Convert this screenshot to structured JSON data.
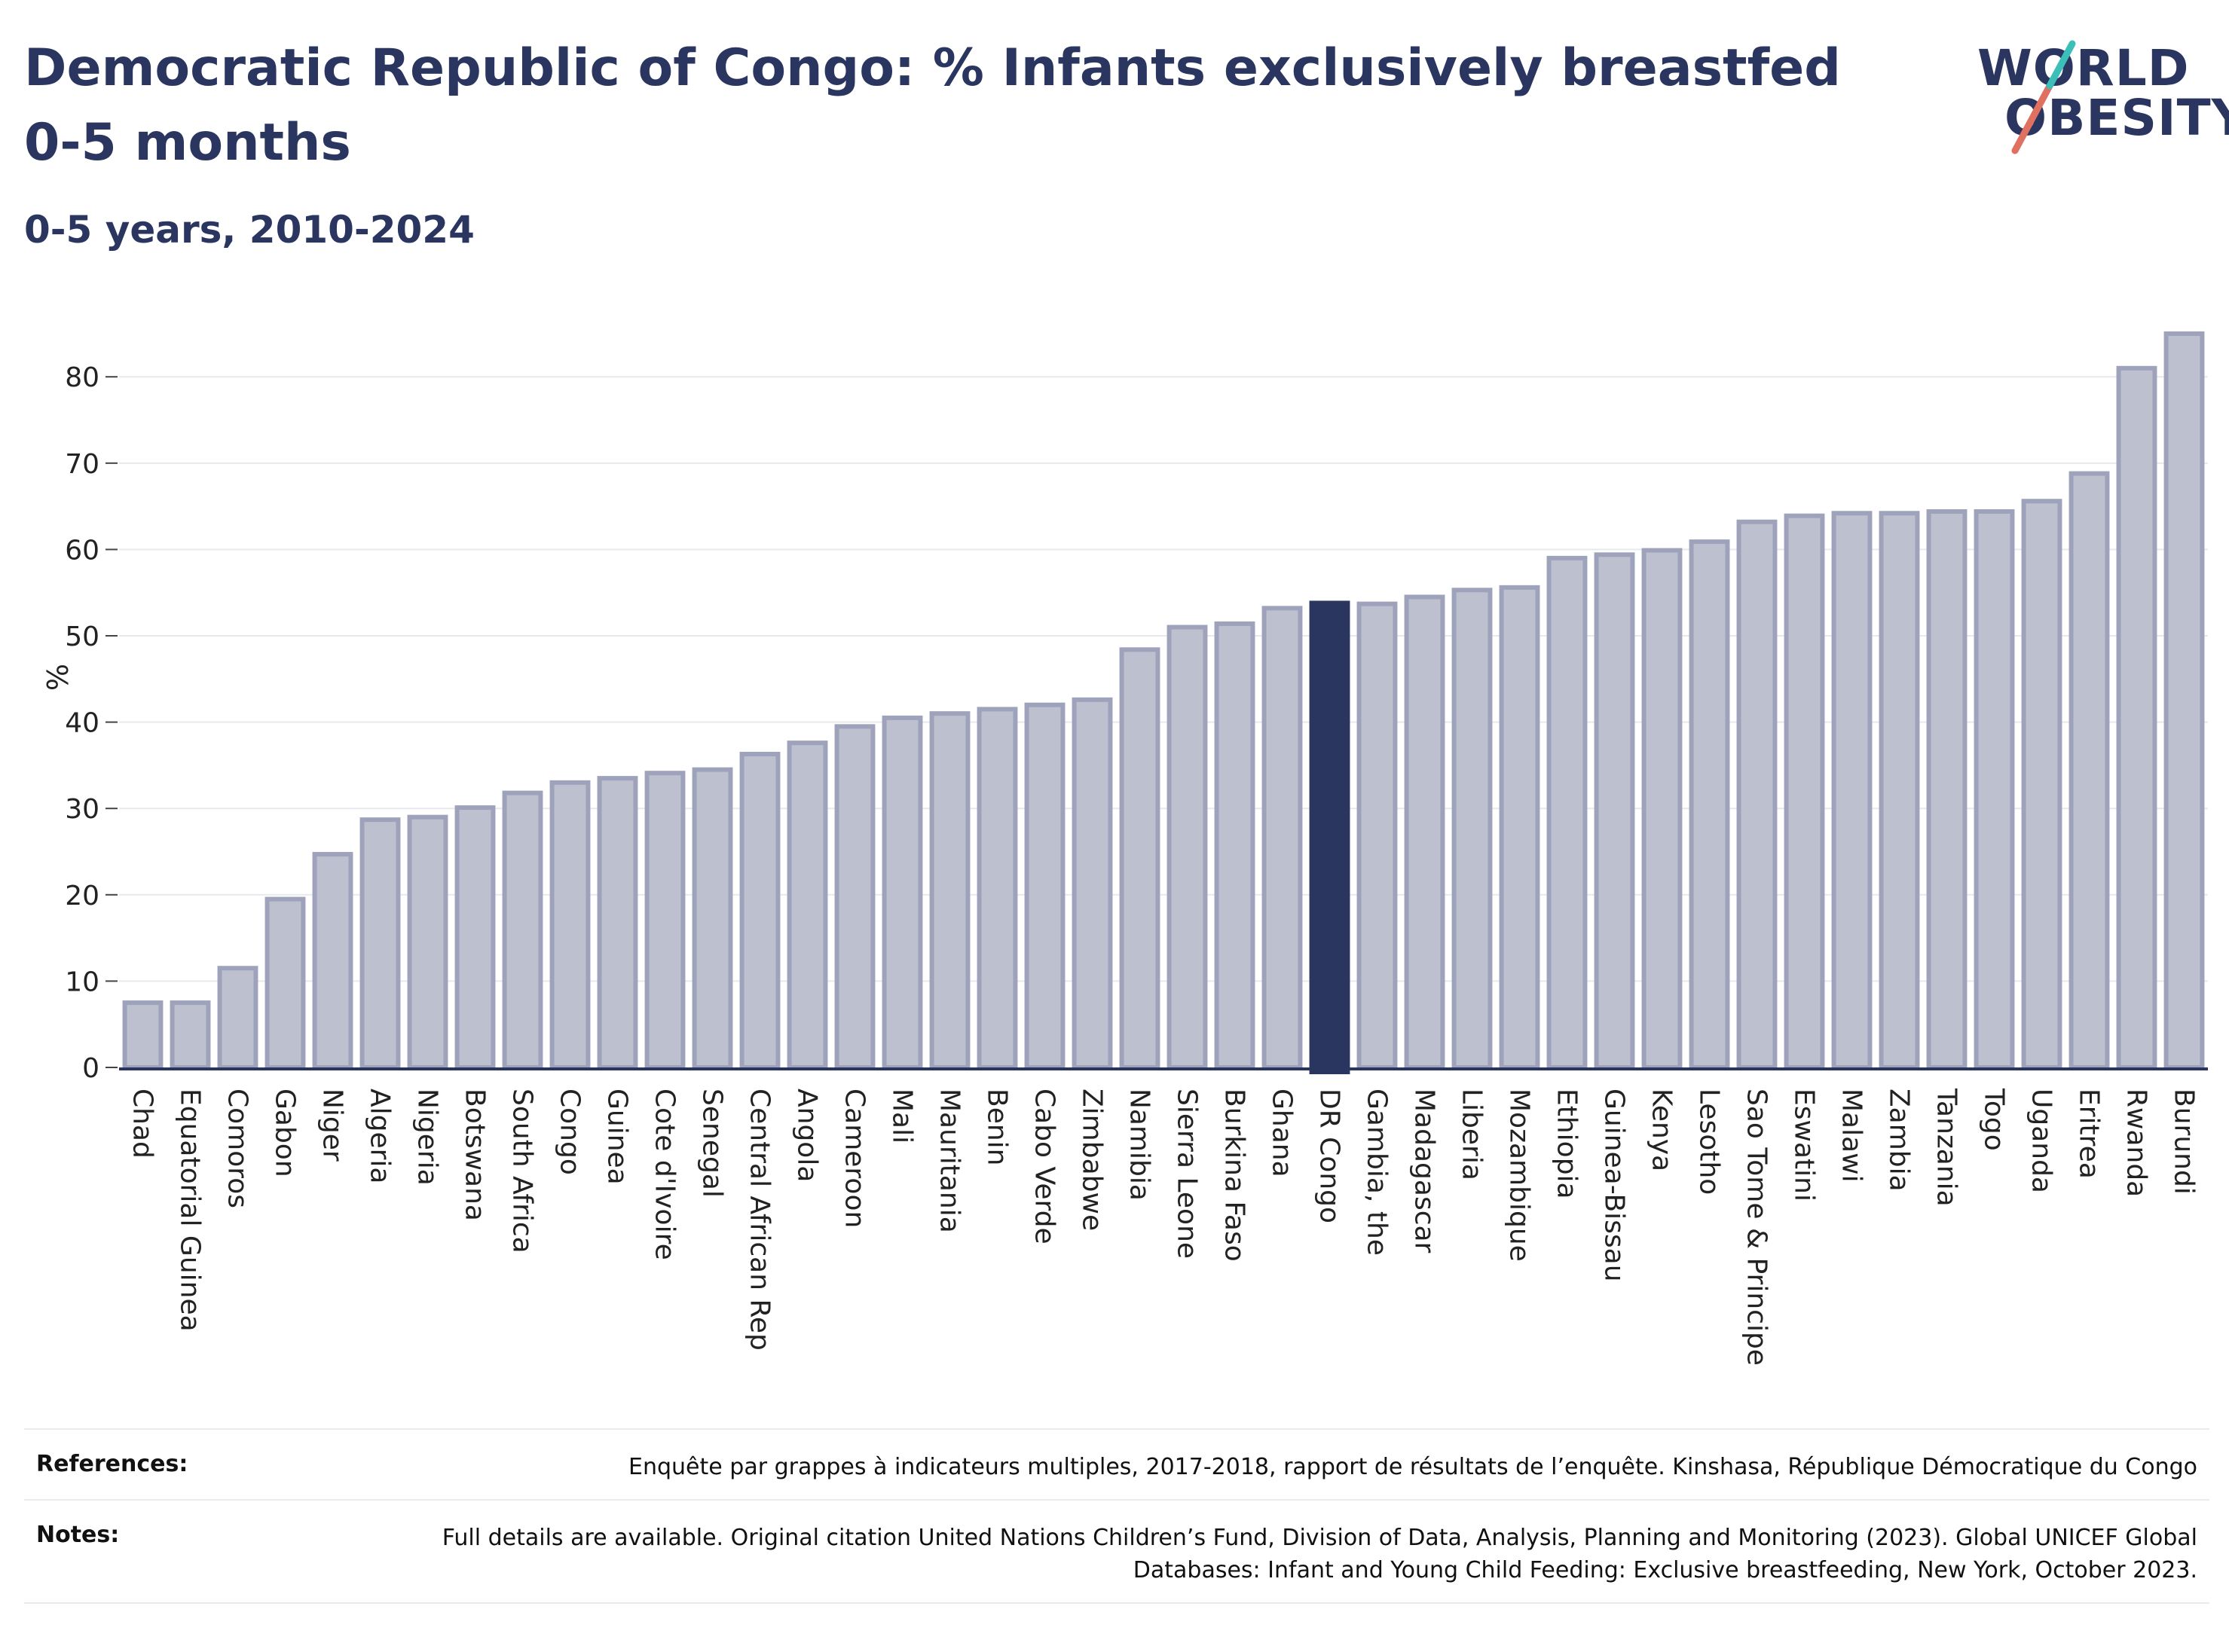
{
  "title": "Democratic Republic of Congo: % Infants exclusively breastfed 0-5 months",
  "subtitle": "0-5 years, 2010-2024",
  "logo": {
    "line1": "WORLD",
    "line2": "OBESITY"
  },
  "chart_data": {
    "type": "bar",
    "ylabel": "%",
    "xlabel": "",
    "ylim": [
      0,
      87
    ],
    "yticks": [
      0,
      10,
      20,
      30,
      40,
      50,
      60,
      70,
      80
    ],
    "grid": true,
    "highlight": "DR Congo",
    "colors": {
      "bar": "#bcc0cf",
      "bar_border": "#9ea3bb",
      "highlight": "#2a3560",
      "grid": "#e8e9ee",
      "axis": "#2a3560"
    },
    "categories": [
      "Chad",
      "Equatorial Guinea",
      "Comoros",
      "Gabon",
      "Niger",
      "Algeria",
      "Nigeria",
      "Botswana",
      "South Africa",
      "Congo",
      "Guinea",
      "Cote d'Ivoire",
      "Senegal",
      "Central African Rep",
      "Angola",
      "Cameroon",
      "Mali",
      "Mauritania",
      "Benin",
      "Cabo Verde",
      "Zimbabwe",
      "Namibia",
      "Sierra Leone",
      "Burkina Faso",
      "Ghana",
      "DR Congo",
      "Gambia, the",
      "Madagascar",
      "Liberia",
      "Mozambique",
      "Ethiopia",
      "Guinea-Bissau",
      "Kenya",
      "Lesotho",
      "Sao Tome & Principe",
      "Eswatini",
      "Malawi",
      "Zambia",
      "Tanzania",
      "Togo",
      "Uganda",
      "Eritrea",
      "Rwanda",
      "Burundi"
    ],
    "values": [
      7.5,
      7.5,
      11.5,
      19.5,
      24.7,
      28.7,
      29,
      30.1,
      31.8,
      33,
      33.5,
      34.1,
      34.5,
      36.3,
      37.6,
      39.5,
      40.5,
      41,
      41.5,
      42,
      42.6,
      48.4,
      51,
      51.4,
      53.2,
      53.8,
      53.7,
      54.5,
      55.3,
      55.6,
      59,
      59.4,
      59.9,
      60.9,
      63.2,
      63.9,
      64.2,
      64.2,
      64.4,
      64.4,
      65.6,
      68.8,
      81,
      85
    ]
  },
  "references": {
    "label": "References:",
    "text": "Enquête par grappes à indicateurs multiples, 2017-2018, rapport de résultats de l’enquête. Kinshasa, République Démocratique du Congo"
  },
  "notes": {
    "label": "Notes:",
    "text": "Full details are available. Original citation United Nations Children’s Fund, Division of Data, Analysis, Planning and Monitoring (2023). Global UNICEF Global Databases: Infant and Young Child Feeding: Exclusive breastfeeding, New York, October 2023."
  }
}
